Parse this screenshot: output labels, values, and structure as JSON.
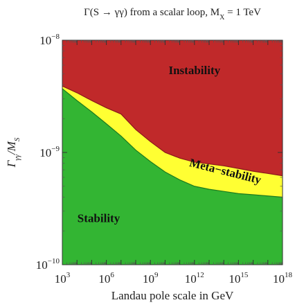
{
  "chart_data": {
    "type": "area",
    "title": "Γ(S → γγ) from a scalar loop, M",
    "title_sub": "X",
    "title_tail": " = 1 TeV",
    "xlabel": "Landau pole scale in GeV",
    "ylabel_main": "Γ",
    "ylabel_sub": "γγ",
    "ylabel_tail": "/M",
    "ylabel_sub2": "S",
    "x_scale": "log",
    "y_scale": "log",
    "xlim": [
      1000,
      1e+18
    ],
    "ylim": [
      1e-10,
      1e-08
    ],
    "grid": false,
    "x_ticks": [
      {
        "value": 1000,
        "base": "10",
        "exp": "3"
      },
      {
        "value": 1000000.0,
        "base": "10",
        "exp": "6"
      },
      {
        "value": 1000000000.0,
        "base": "10",
        "exp": "9"
      },
      {
        "value": 1000000000000.0,
        "base": "10",
        "exp": "12"
      },
      {
        "value": 1000000000000000.0,
        "base": "10",
        "exp": "15"
      },
      {
        "value": 1e+18,
        "base": "10",
        "exp": "18"
      }
    ],
    "y_ticks": [
      {
        "value": 1e-10,
        "base": "10",
        "exp": "−10"
      },
      {
        "value": 1e-09,
        "base": "10",
        "exp": "−9"
      },
      {
        "value": 1e-08,
        "base": "10",
        "exp": "−8"
      }
    ],
    "regions": [
      {
        "name": "Instability",
        "color": "#c0292a",
        "edge": "#8a1a1a"
      },
      {
        "name": "Meta−stability",
        "color": "#ffff33",
        "edge": "#b5b500"
      },
      {
        "name": "Stability",
        "color": "#33b533",
        "edge": "#1e7a1e"
      }
    ],
    "stability_boundary": {
      "x": [
        1000,
        10000.0,
        100000.0,
        1000000.0,
        10000000.0,
        100000000.0,
        1000000000.0,
        10000000000.0,
        100000000000.0,
        1000000000000.0,
        10000000000000.0,
        100000000000000.0,
        1000000000000000.0,
        1e+16,
        1e+17,
        1e+18
      ],
      "y": [
        3.7e-09,
        2.9e-09,
        2.3e-09,
        1.8e-09,
        1.4e-09,
        1.05e-09,
        8.3e-10,
        6.7e-10,
        5.7e-10,
        5e-10,
        4.7e-10,
        4.5e-10,
        4.3e-10,
        4.2e-10,
        4.1e-10,
        4e-10
      ]
    },
    "instability_boundary": {
      "x": [
        1000,
        10000.0,
        100000.0,
        1000000.0,
        10000000.0,
        100000000.0,
        1000000000.0,
        10000000000.0,
        100000000000.0,
        1000000000000.0,
        10000000000000.0,
        100000000000000.0,
        1000000000000000.0,
        1e+16,
        1e+17,
        1e+18
      ],
      "y": [
        3.9e-09,
        3.4e-09,
        2.9e-09,
        2.5e-09,
        2.2e-09,
        1.6e-09,
        1.25e-09,
        1e-09,
        8.9e-10,
        8.2e-10,
        7.9e-10,
        7.6e-10,
        7.2e-10,
        6.8e-10,
        6.5e-10,
        6.2e-10
      ]
    },
    "region_label_positions": [
      {
        "text": "Instability",
        "x": 1000000000000.0,
        "y": 5e-09,
        "rotate": 0
      },
      {
        "text": "Meta−stability",
        "x": 110000000000000.0,
        "y": 6.3e-10,
        "rotate": 14
      },
      {
        "text": "Stability",
        "x": 300000.0,
        "y": 2.4e-10,
        "rotate": 0
      }
    ]
  }
}
